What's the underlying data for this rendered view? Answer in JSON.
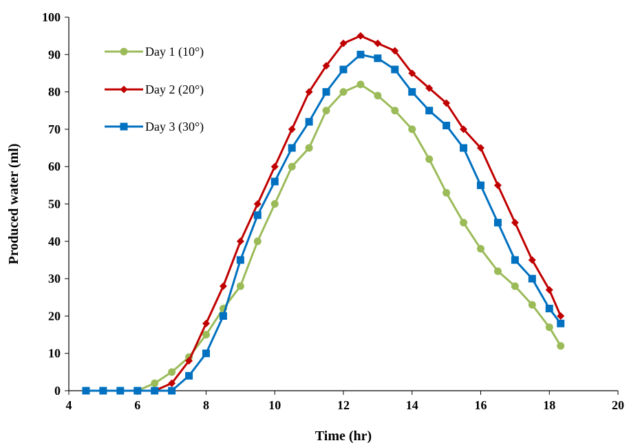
{
  "chart_data": {
    "type": "line",
    "title": "",
    "xlabel": "Time (hr)",
    "ylabel": "Produced water (ml)",
    "xlim": [
      4,
      20
    ],
    "ylim": [
      0,
      100
    ],
    "x_ticks": [
      "4",
      "6",
      "8",
      "10",
      "12",
      "14",
      "16",
      "18",
      "20"
    ],
    "y_ticks": [
      "0",
      "10",
      "20",
      "30",
      "40",
      "50",
      "60",
      "70",
      "80",
      "90",
      "100"
    ],
    "grid": false,
    "legend_position": "top-left",
    "series": [
      {
        "name": "Day 1 (10°)",
        "color": "#9BBB59",
        "marker": "circle",
        "x": [
          4.5,
          5,
          5.5,
          6,
          6.5,
          7,
          7.5,
          8,
          8.5,
          9,
          9.5,
          10,
          10.5,
          11,
          11.5,
          12,
          12.5,
          13,
          13.5,
          14,
          14.5,
          15,
          15.5,
          16,
          16.5,
          17,
          17.5,
          18,
          18.33
        ],
        "y": [
          0,
          0,
          0,
          0,
          2,
          5,
          9,
          15,
          22,
          28,
          40,
          50,
          60,
          65,
          75,
          80,
          82,
          79,
          75,
          70,
          62,
          53,
          45,
          38,
          32,
          28,
          23,
          17,
          12
        ]
      },
      {
        "name": "Day 2 (20°)",
        "color": "#C00000",
        "marker": "diamond",
        "x": [
          4.5,
          5,
          5.5,
          6,
          6.5,
          7,
          7.5,
          8,
          8.5,
          9,
          9.5,
          10,
          10.5,
          11,
          11.5,
          12,
          12.5,
          13,
          13.5,
          14,
          14.5,
          15,
          15.5,
          16,
          16.5,
          17,
          17.5,
          18,
          18.33
        ],
        "y": [
          0,
          0,
          0,
          0,
          0,
          2,
          8,
          18,
          28,
          40,
          50,
          60,
          70,
          80,
          87,
          93,
          95,
          93,
          91,
          85,
          81,
          77,
          70,
          65,
          55,
          45,
          35,
          27,
          20
        ]
      },
      {
        "name": "Day 3 (30°)",
        "color": "#0070C0",
        "marker": "square",
        "x": [
          4.5,
          5,
          5.5,
          6,
          6.5,
          7,
          7.5,
          8,
          8.5,
          9,
          9.5,
          10,
          10.5,
          11,
          11.5,
          12,
          12.5,
          13,
          13.5,
          14,
          14.5,
          15,
          15.5,
          16,
          16.5,
          17,
          17.5,
          18,
          18.33
        ],
        "y": [
          0,
          0,
          0,
          0,
          0,
          0,
          4,
          10,
          20,
          35,
          47,
          56,
          65,
          72,
          80,
          86,
          90,
          89,
          86,
          80,
          75,
          71,
          65,
          55,
          45,
          35,
          30,
          22,
          18
        ]
      }
    ]
  }
}
